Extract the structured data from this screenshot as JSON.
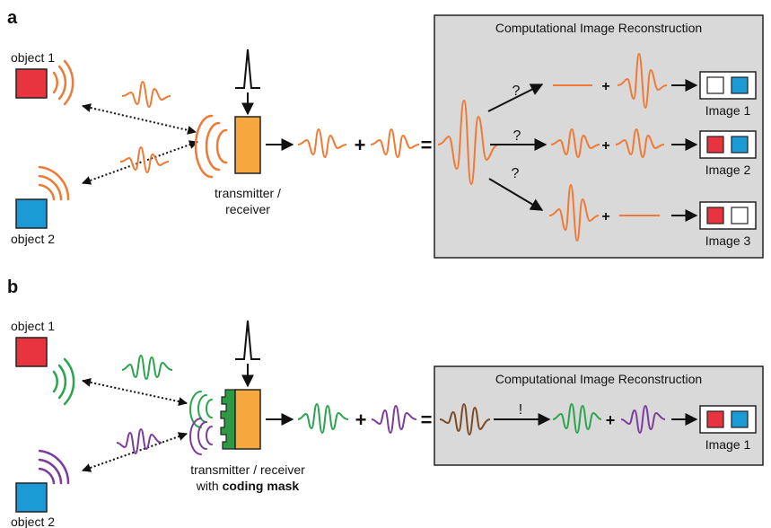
{
  "colors": {
    "orange": "#f07a35",
    "green": "#2aa44f",
    "purple": "#7c3c9c",
    "brown": "#7a4a24",
    "red": "#e8343f",
    "blue": "#1c9ad6",
    "transceiver": "#f6a83f",
    "mask": "#2e9a46",
    "panel": "#d9d9d9"
  },
  "panel_a": {
    "label": "a",
    "object_1": "object 1",
    "object_2": "object 2",
    "transceiver_label_line1": "transmitter /",
    "transceiver_label_line2": "receiver",
    "plus": "+",
    "equals": "=",
    "reconstruction_title": "Computational Image Reconstruction",
    "question": "?",
    "images": [
      "Image 1",
      "Image 2",
      "Image 3"
    ]
  },
  "panel_b": {
    "label": "b",
    "object_1": "object 1",
    "object_2": "object 2",
    "transceiver_label_line1": "transmitter / receiver",
    "transceiver_label_line2_prefix": "with ",
    "transceiver_label_line2_bold": "coding mask",
    "plus": "+",
    "equals": "=",
    "reconstruction_title": "Computational Image Reconstruction",
    "exclaim": "!",
    "images": [
      "Image 1"
    ]
  }
}
